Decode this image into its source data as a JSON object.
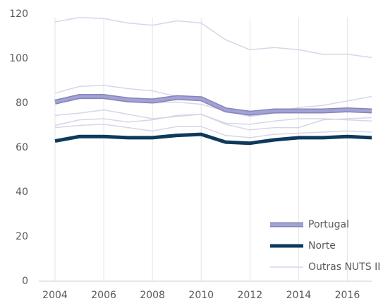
{
  "chart_data": {
    "type": "line",
    "x": [
      2004,
      2005,
      2006,
      2007,
      2008,
      2009,
      2010,
      2011,
      2012,
      2013,
      2014,
      2015,
      2016,
      2017
    ],
    "xlim": [
      2004,
      2017
    ],
    "xticks": [
      2004,
      2006,
      2008,
      2010,
      2012,
      2014,
      2016
    ],
    "ylim": [
      0,
      120
    ],
    "yticks": [
      0,
      20,
      40,
      60,
      80,
      100,
      120
    ],
    "legend": "lower right",
    "series": [
      {
        "name": "Outras NUTS II",
        "color": "#d6d6ea",
        "lines": [
          [
            116.5,
            118.5,
            118,
            116,
            115,
            117,
            116,
            108.5,
            104,
            105,
            104,
            102,
            102,
            100.5
          ],
          [
            84.5,
            87.5,
            88,
            86.5,
            85.5,
            83,
            81,
            76,
            74.5,
            76,
            78,
            79,
            81,
            83
          ],
          [
            80,
            82,
            82,
            80.5,
            80,
            80.5,
            79.5,
            76.5,
            74,
            75.5,
            76,
            76,
            76.5,
            76
          ],
          [
            74.5,
            75.5,
            77,
            75,
            73,
            74,
            75,
            70.5,
            68,
            69,
            69,
            72.5,
            73,
            73.5
          ],
          [
            70,
            72.5,
            73,
            71.5,
            72.5,
            74.5,
            75,
            71,
            70.5,
            72,
            73,
            73,
            72.5,
            72
          ],
          [
            69,
            70,
            70.5,
            69,
            67.5,
            69.5,
            69.5,
            65.5,
            64.5,
            66,
            66.5,
            67,
            67.5,
            67
          ]
        ]
      },
      {
        "name": "Portugal",
        "color": "#a2a2d5",
        "values": [
          80.5,
          83,
          83,
          81.5,
          81,
          82.5,
          82,
          77,
          75.5,
          76.5,
          76.5,
          76.5,
          77,
          76.5
        ]
      },
      {
        "name": "Norte",
        "color": "#0d3a5c",
        "values": [
          63,
          65,
          65,
          64.5,
          64.5,
          65.5,
          66,
          62.5,
          62,
          63.5,
          64.5,
          64.5,
          65,
          64.5
        ]
      }
    ]
  }
}
